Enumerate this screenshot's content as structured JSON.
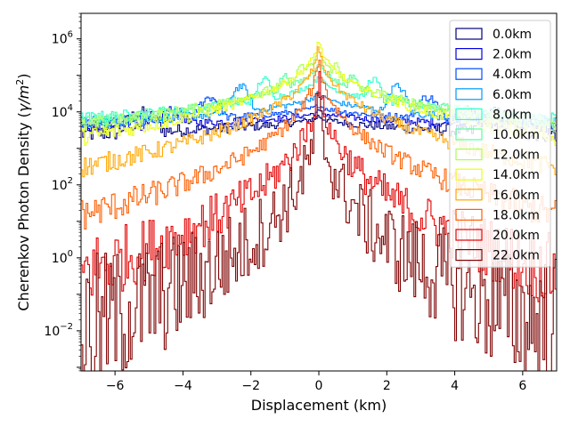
{
  "chart_data": {
    "type": "line",
    "style": "step-histogram",
    "title": "",
    "xlabel": "Displacement (km)",
    "ylabel": "Cherenkov Photon Density (γ/m²)",
    "ylabel_parts": {
      "main": "Cherenkov Photon Density (",
      "italic": "γ/m",
      "sup": "2",
      "close": ")"
    },
    "xlim": [
      -7,
      7
    ],
    "ylim_log10": [
      -3.1,
      6.7
    ],
    "yscale": "log",
    "xticks": [
      -6,
      -4,
      -2,
      0,
      2,
      4,
      6
    ],
    "xtick_labels": [
      "−6",
      "−4",
      "−2",
      "0",
      "2",
      "4",
      "6"
    ],
    "yticks_exp": [
      -2,
      0,
      2,
      4,
      6
    ],
    "ytick_base": "10",
    "ytick_exp_labels": [
      "−2",
      "0",
      "2",
      "4",
      "6"
    ],
    "legend_position": "upper right",
    "x_unit": "km",
    "y_unit": "photons per m²",
    "series": [
      {
        "name": "0.0km",
        "color": "#00007f",
        "peak": 9000,
        "ring_radius": 5.2,
        "ring_peak": 9000,
        "edge": 2500,
        "noise": 0.08
      },
      {
        "name": "2.0km",
        "color": "#0000e0",
        "peak": 12000,
        "ring_radius": 4.3,
        "ring_peak": 11000,
        "edge": 4000,
        "noise": 0.06
      },
      {
        "name": "4.0km",
        "color": "#004cff",
        "peak": 18000,
        "ring_radius": 3.2,
        "ring_peak": 25000,
        "edge": 5000,
        "noise": 0.06
      },
      {
        "name": "6.0km",
        "color": "#0099ff",
        "peak": 45000,
        "ring_radius": 2.3,
        "ring_peak": 50000,
        "edge": 5000,
        "noise": 0.06
      },
      {
        "name": "8.0km",
        "color": "#29ffce",
        "peak": 140000,
        "ring_radius": 1.6,
        "ring_peak": 80000,
        "edge": 6500,
        "noise": 0.06
      },
      {
        "name": "10.0km",
        "color": "#57ff9f",
        "peak": 400000,
        "ring_radius": 1.0,
        "ring_peak": 100000,
        "edge": 5500,
        "noise": 0.06
      },
      {
        "name": "12.0km",
        "color": "#a8ff4f",
        "peak": 1000000,
        "ring_radius": 0.5,
        "ring_peak": 200000,
        "edge": 4000,
        "noise": 0.07
      },
      {
        "name": "14.0km",
        "color": "#e8ff0f",
        "peak": 2000000,
        "ring_radius": 0.0,
        "ring_peak": 0,
        "edge": 2000,
        "noise": 0.08
      },
      {
        "name": "16.0km",
        "color": "#ffa700",
        "peak": 1600000,
        "ring_radius": 0.0,
        "ring_peak": 0,
        "edge": 300,
        "noise": 0.1
      },
      {
        "name": "18.0km",
        "color": "#ff5f00",
        "peak": 1100000,
        "ring_radius": 0.0,
        "ring_peak": 0,
        "edge": 15,
        "noise": 0.15
      },
      {
        "name": "20.0km",
        "color": "#e30000",
        "peak": 400000,
        "ring_radius": 0.0,
        "ring_peak": 0,
        "edge": 0.4,
        "noise": 0.35
      },
      {
        "name": "22.0km",
        "color": "#7f0000",
        "peak": 90000,
        "ring_radius": 0.0,
        "ring_peak": 0,
        "edge": 0.01,
        "noise": 0.7
      }
    ]
  }
}
